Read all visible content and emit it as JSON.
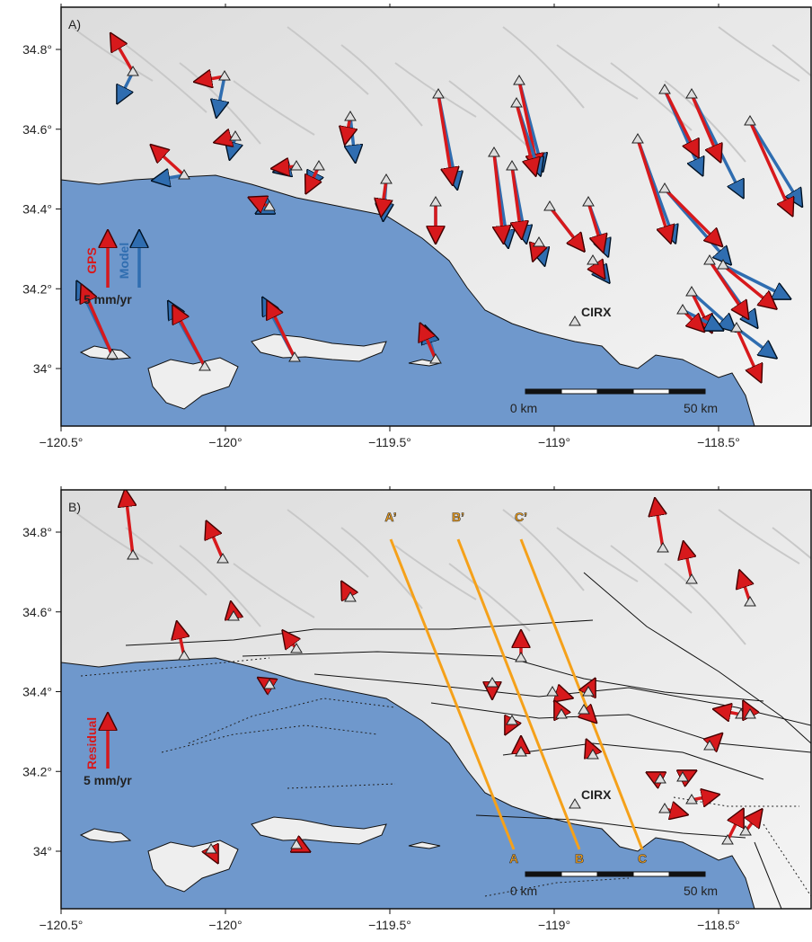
{
  "panels": [
    {
      "label": "A)",
      "x_tick_labels": [
        "−120.5°",
        "−120°",
        "−119.5°",
        "−119°",
        "−118.5°"
      ],
      "y_tick_labels": [
        "34°",
        "34.2°",
        "34.4°",
        "34.6°",
        "34.8°"
      ],
      "legend": {
        "gps": "GPS",
        "model": "Model",
        "scale": "5 mm/yr"
      },
      "station": "CIRX",
      "scale_bar": {
        "start": "0 km",
        "end": "50 km"
      }
    },
    {
      "label": "B)",
      "x_tick_labels": [
        "−120.5°",
        "−120°",
        "−119.5°",
        "−119°",
        "−118.5°"
      ],
      "y_tick_labels": [
        "34°",
        "34.2°",
        "34.4°",
        "34.6°",
        "34.8°"
      ],
      "legend": {
        "residual": "Residual",
        "scale": "5 mm/yr"
      },
      "station": "CIRX",
      "scale_bar": {
        "start": "0 km",
        "end": "50 km"
      },
      "profiles": [
        {
          "start": "A",
          "end": "A’"
        },
        {
          "start": "B",
          "end": "B’"
        },
        {
          "start": "C",
          "end": "C’"
        }
      ]
    }
  ]
}
